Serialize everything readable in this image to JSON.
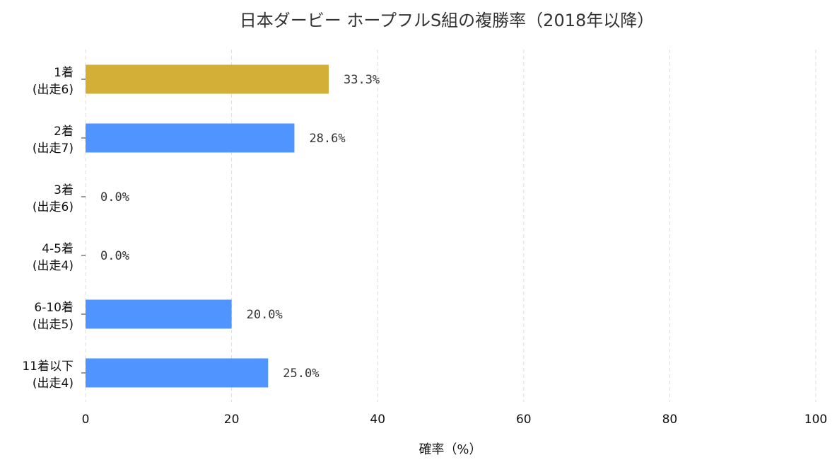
{
  "chart_data": {
    "type": "bar",
    "orientation": "horizontal",
    "title": "日本ダービー ホープフルS組の複勝率（2018年以降）",
    "xlabel": "確率（%）",
    "ylabel": "",
    "xlim": [
      0,
      100
    ],
    "xticks": [
      0,
      20,
      40,
      60,
      80,
      100
    ],
    "grid": "x-dashed",
    "categories": [
      [
        "1着",
        "(出走6)"
      ],
      [
        "2着",
        "(出走7)"
      ],
      [
        "3着",
        "(出走6)"
      ],
      [
        "4-5着",
        "(出走4)"
      ],
      [
        "6-10着",
        "(出走5)"
      ],
      [
        "11着以下",
        "(出走4)"
      ]
    ],
    "values": [
      33.3,
      28.6,
      0.0,
      0.0,
      20.0,
      25.0
    ],
    "value_labels": [
      "33.3%",
      "28.6%",
      "0.0%",
      "0.0%",
      "20.0%",
      "25.0%"
    ],
    "colors": [
      "#d4af37",
      "#4f94ff",
      "#4f94ff",
      "#4f94ff",
      "#4f94ff",
      "#4f94ff"
    ]
  }
}
